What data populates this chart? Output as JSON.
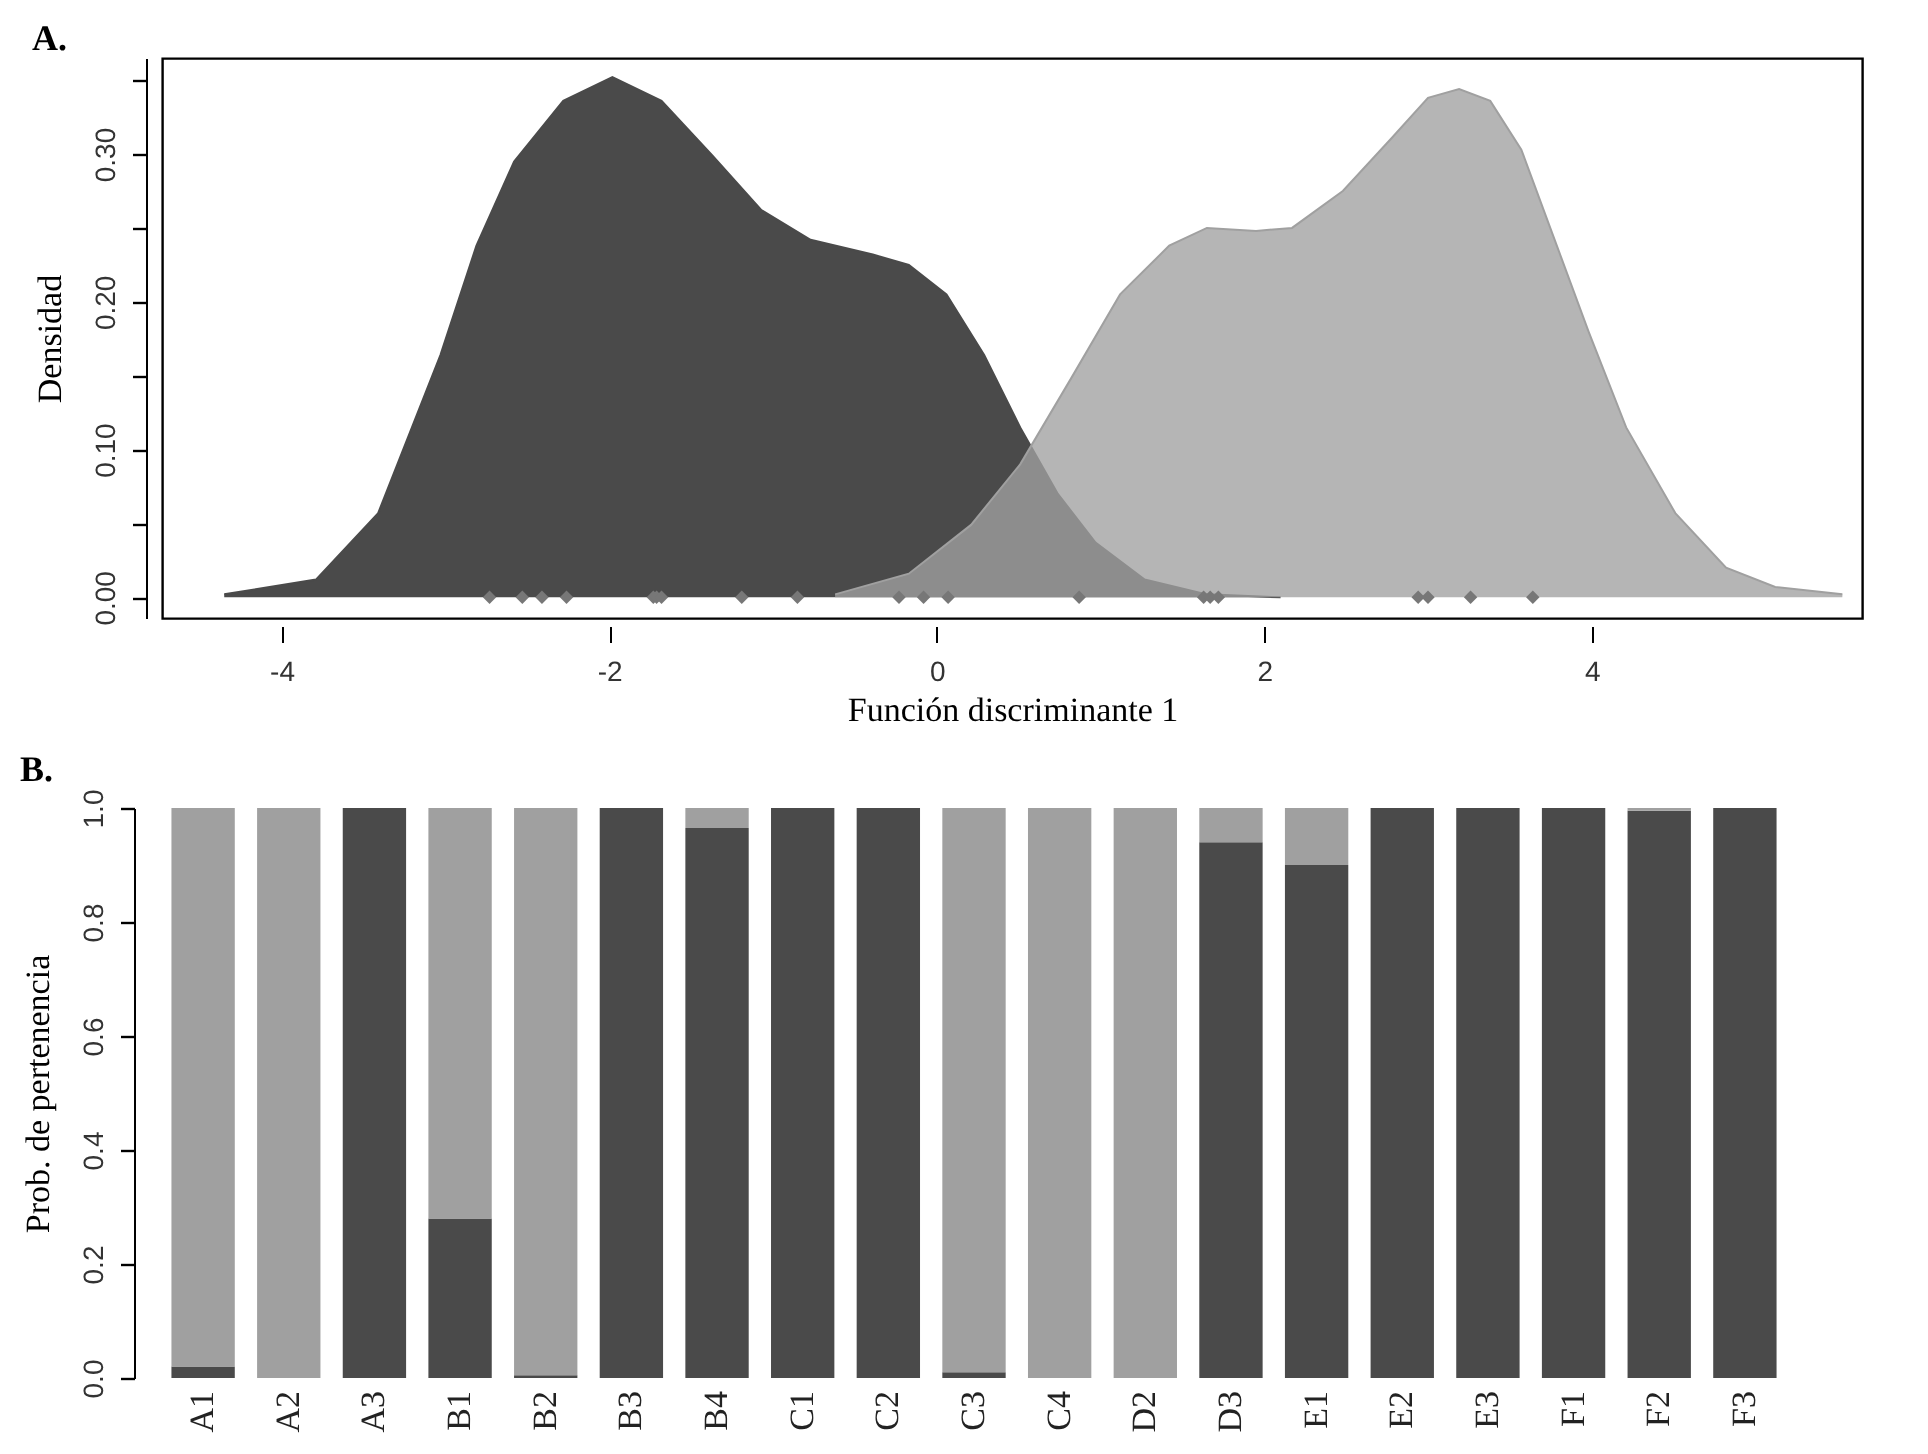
{
  "chart_data": [
    {
      "type": "area",
      "title": "A.",
      "xlabel": "Función discriminante 1",
      "ylabel": "Densidad",
      "xlim": [
        -4.73,
        5.65
      ],
      "ylim": [
        -0.014,
        0.365
      ],
      "xticks": [
        -4,
        -2,
        0,
        2,
        4
      ],
      "yticks": [
        {
          "value": 0,
          "label": "0.00"
        },
        {
          "value": 0.05,
          "label": null
        },
        {
          "value": 0.1,
          "label": "0.10"
        },
        {
          "value": 0.15,
          "label": null
        },
        {
          "value": 0.2,
          "label": "0.20"
        },
        {
          "value": 0.25,
          "label": null
        },
        {
          "value": 0.3,
          "label": "0.30"
        },
        {
          "value": 0.35,
          "label": null
        }
      ],
      "series": [
        {
          "color": "#4a4a4a",
          "x": [
            -4.35,
            -3.79,
            -3.41,
            -3.03,
            -2.81,
            -2.58,
            -2.28,
            -1.98,
            -1.68,
            -1.37,
            -1.07,
            -0.77,
            -0.39,
            -0.17,
            0.06,
            0.29,
            0.51,
            0.74,
            0.97,
            1.27,
            1.65,
            2.1
          ],
          "values": [
            0.002,
            0.012,
            0.057,
            0.164,
            0.238,
            0.295,
            0.336,
            0.352,
            0.336,
            0.299,
            0.262,
            0.242,
            0.232,
            0.225,
            0.205,
            0.164,
            0.115,
            0.07,
            0.037,
            0.012,
            0.002,
            0
          ]
        },
        {
          "color": "#a0a0a0",
          "x": [
            -0.62,
            -0.17,
            0.21,
            0.51,
            0.82,
            1.12,
            1.42,
            1.65,
            1.95,
            2.17,
            2.48,
            2.78,
            3.0,
            3.19,
            3.38,
            3.57,
            3.76,
            3.98,
            4.21,
            4.51,
            4.82,
            5.12,
            5.53
          ],
          "values": [
            0.002,
            0.016,
            0.049,
            0.09,
            0.148,
            0.205,
            0.238,
            0.25,
            0.248,
            0.25,
            0.275,
            0.311,
            0.338,
            0.344,
            0.336,
            0.303,
            0.246,
            0.18,
            0.115,
            0.057,
            0.02,
            0.007,
            0.002
          ]
        },
        {
          "type": "scatter",
          "marker": "diamond",
          "color": "#777777",
          "x": [
            -2.73,
            -2.53,
            -2.41,
            -2.26,
            -1.73,
            -1.71,
            -1.68,
            -1.19,
            -0.85,
            -0.23,
            -0.08,
            0.07,
            0.87,
            1.63,
            1.67,
            1.72,
            2.94,
            3.0,
            3.26,
            3.64
          ],
          "values": [
            0,
            0,
            0,
            0,
            0,
            0,
            0,
            0,
            0,
            0,
            0,
            0,
            0,
            0,
            0,
            0,
            0,
            0,
            0,
            0
          ]
        }
      ]
    },
    {
      "type": "bar",
      "stacked": true,
      "title": "B.",
      "ylabel": "Prob. de pertenencia",
      "categories": [
        "A1",
        "A2",
        "A3",
        "B1",
        "B2",
        "B3",
        "B4",
        "C1",
        "C2",
        "C3",
        "C4",
        "D2",
        "D3",
        "E1",
        "E2",
        "E3",
        "F1",
        "F2",
        "F3"
      ],
      "ylim": [
        0,
        1
      ],
      "yticks": [
        {
          "value": 0,
          "label": "0.0"
        },
        {
          "value": 0.2,
          "label": "0.2"
        },
        {
          "value": 0.4,
          "label": "0.4"
        },
        {
          "value": 0.6,
          "label": "0.6"
        },
        {
          "value": 0.8,
          "label": "0.8"
        },
        {
          "value": 1,
          "label": "1.0"
        }
      ],
      "series": [
        {
          "color": "#4a4a4a",
          "values": [
            0.02,
            0,
            1,
            0.28,
            0.005,
            1,
            0.965,
            1,
            1,
            0.01,
            0,
            0,
            0.94,
            0.9,
            1,
            1,
            1,
            0.995,
            1
          ]
        },
        {
          "color": "#a0a0a0",
          "values": [
            0.98,
            1,
            0,
            0.72,
            0.995,
            0,
            0.035,
            0,
            0,
            0.99,
            1,
            1,
            0.06,
            0.1,
            0,
            0,
            0,
            0.005,
            0
          ]
        }
      ]
    }
  ]
}
